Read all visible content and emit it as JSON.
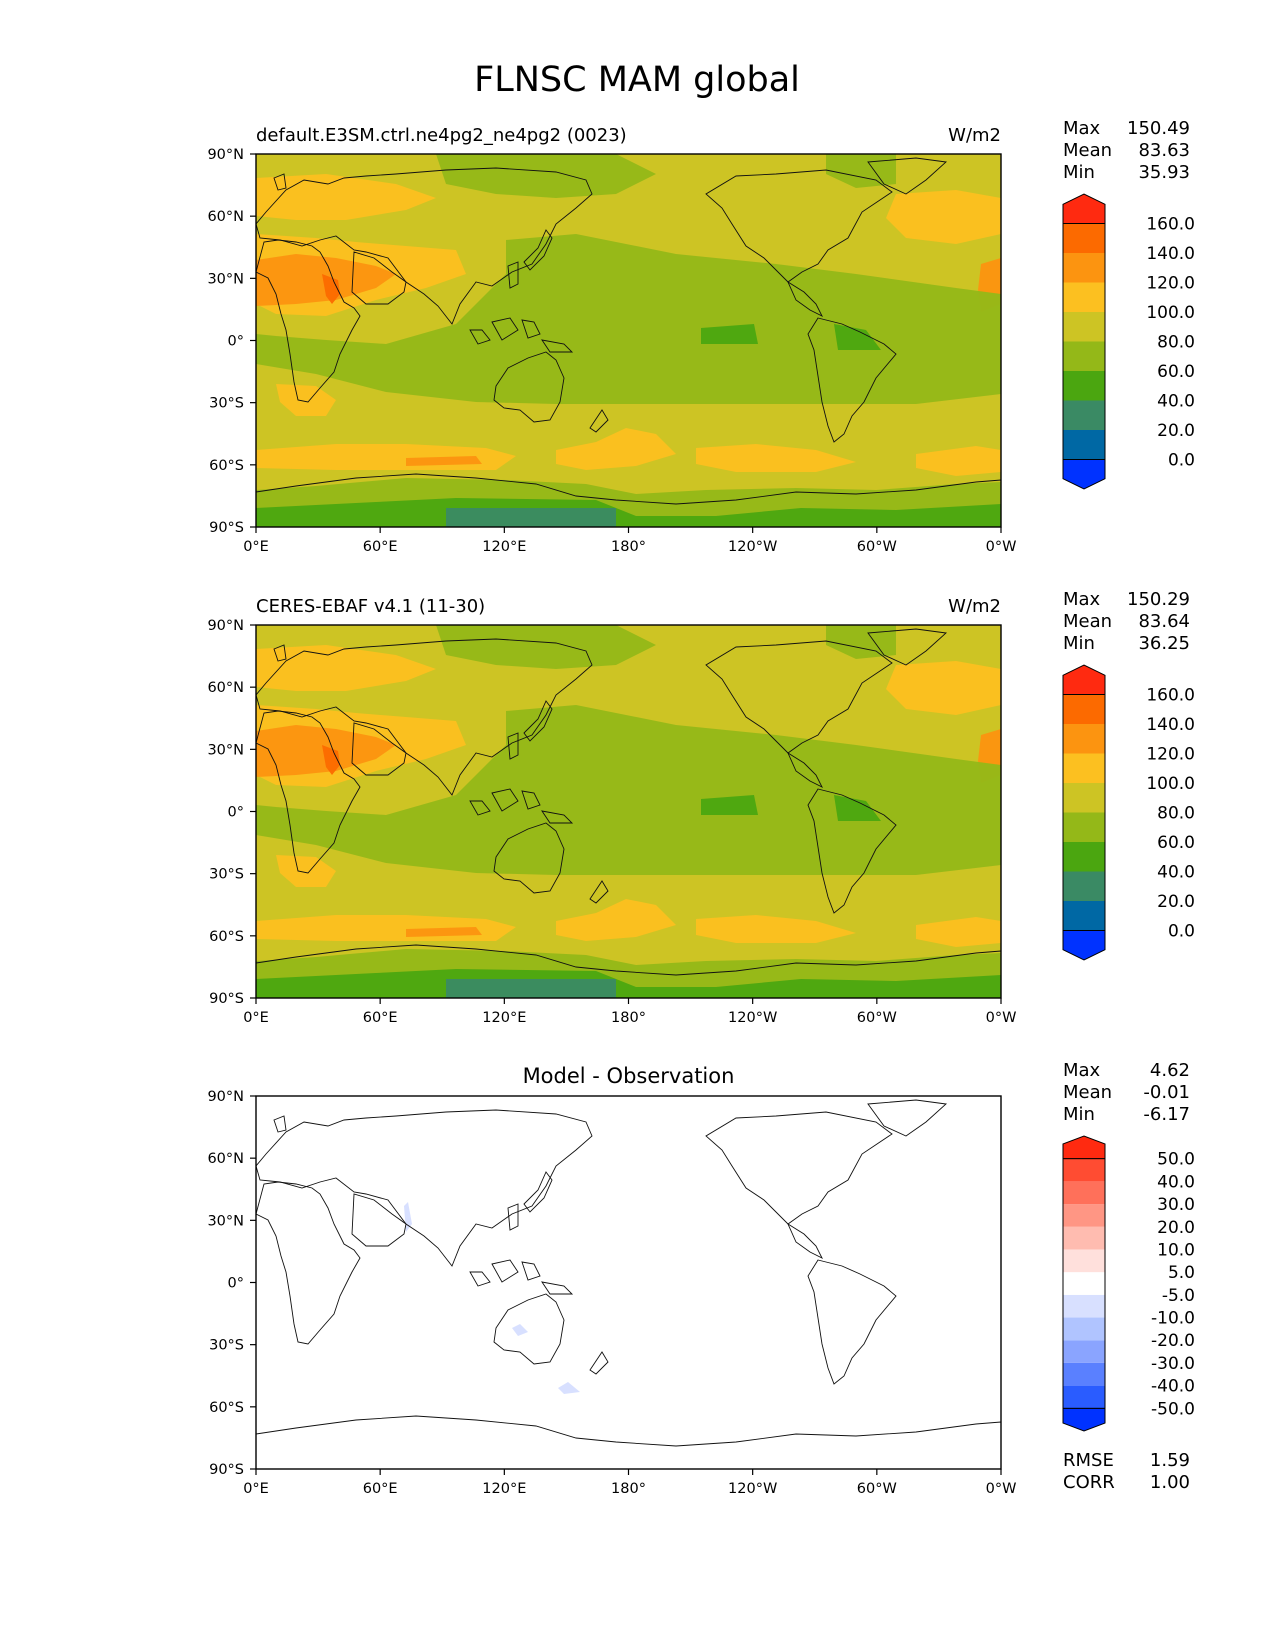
{
  "title": "FLNSC MAM global",
  "lat_ticks": [
    "90°N",
    "60°N",
    "30°N",
    "0°",
    "30°S",
    "60°S",
    "90°S"
  ],
  "lon_ticks": [
    "0°E",
    "60°E",
    "120°E",
    "180°",
    "120°W",
    "60°W",
    "0°W"
  ],
  "panels": [
    {
      "id": "model",
      "left_title": "default.E3SM.ctrl.ne4pg2_ne4pg2 (0023)",
      "center_title": "",
      "units": "W/m2",
      "stats": [
        {
          "label": "Max",
          "value": "150.49"
        },
        {
          "label": "Mean",
          "value": "83.63"
        },
        {
          "label": "Min",
          "value": "35.93"
        }
      ],
      "colorbar": {
        "colors": [
          "#0032ff",
          "#0068a4",
          "#3a8a64",
          "#4ba610",
          "#94b818",
          "#cdc424",
          "#fcc020",
          "#fc9410",
          "#fc6a00",
          "#ff2a10"
        ],
        "labels": [
          "0.0",
          "20.0",
          "40.0",
          "60.0",
          "80.0",
          "100.0",
          "120.0",
          "140.0",
          "160.0"
        ]
      },
      "extra_stats": []
    },
    {
      "id": "obs",
      "left_title": "CERES-EBAF v4.1 (11-30)",
      "center_title": "",
      "units": "W/m2",
      "stats": [
        {
          "label": "Max",
          "value": "150.29"
        },
        {
          "label": "Mean",
          "value": "83.64"
        },
        {
          "label": "Min",
          "value": "36.25"
        }
      ],
      "colorbar": {
        "colors": [
          "#0032ff",
          "#0068a4",
          "#3a8a64",
          "#4ba610",
          "#94b818",
          "#cdc424",
          "#fcc020",
          "#fc9410",
          "#fc6a00",
          "#ff2a10"
        ],
        "labels": [
          "0.0",
          "20.0",
          "40.0",
          "60.0",
          "80.0",
          "100.0",
          "120.0",
          "140.0",
          "160.0"
        ]
      },
      "extra_stats": []
    },
    {
      "id": "diff",
      "left_title": "",
      "center_title": "Model - Observation",
      "units": "",
      "stats": [
        {
          "label": "Max",
          "value": "4.62"
        },
        {
          "label": "Mean",
          "value": "-0.01"
        },
        {
          "label": "Min",
          "value": "-6.17"
        }
      ],
      "colorbar": {
        "colors": [
          "#0032ff",
          "#2a5cff",
          "#5a80ff",
          "#8aa4ff",
          "#b0c4ff",
          "#d8e0ff",
          "#ffffff",
          "#ffe0dc",
          "#ffbcb0",
          "#ff9684",
          "#ff705a",
          "#ff4c32",
          "#ff2a10"
        ],
        "labels": [
          "-50.0",
          "-40.0",
          "-30.0",
          "-20.0",
          "-10.0",
          "-5.0",
          "5.0",
          "10.0",
          "20.0",
          "30.0",
          "40.0",
          "50.0"
        ]
      },
      "extra_stats": [
        {
          "label": "RMSE",
          "value": "1.59"
        },
        {
          "label": "CORR",
          "value": "1.00"
        }
      ]
    }
  ],
  "map_fields": {
    "model_fill": "#cdc424",
    "diff_fill": "#ffffff"
  }
}
